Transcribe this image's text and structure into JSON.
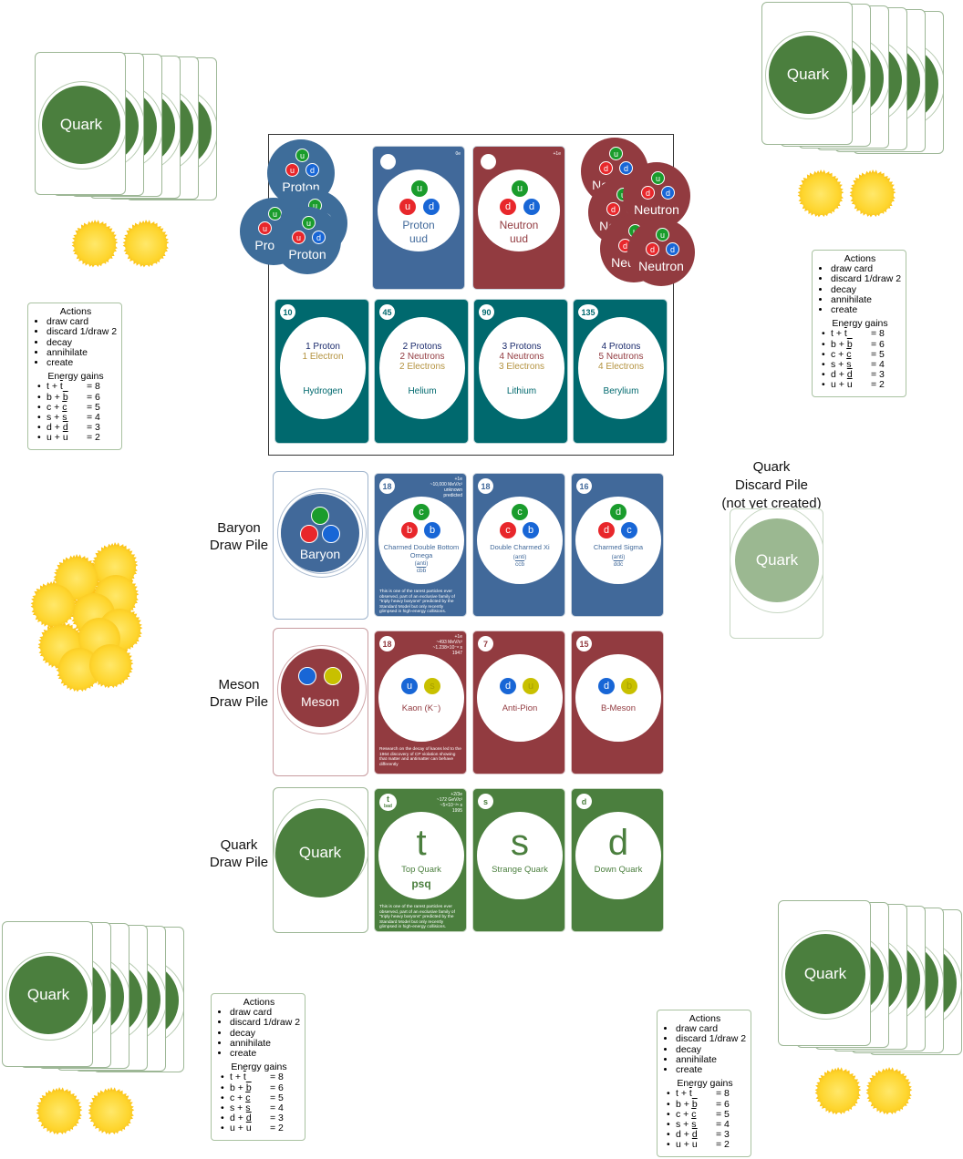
{
  "colors": {
    "quark_green": "#4b7f3e",
    "baryon_blue": "#41699a",
    "meson_red": "#923b40",
    "atom_teal": "#00696e",
    "sun": "#fcc51a"
  },
  "deck": {
    "quark_back": "Quark",
    "baryon_back": "Baryon",
    "meson_back": "Meson"
  },
  "labels": {
    "baryon_pile": "Baryon\nDraw Pile",
    "meson_pile": "Meson\nDraw Pile",
    "quark_pile": "Quark\nDraw Pile",
    "discard_pile": "Quark\nDiscard Pile\n(not yet created)"
  },
  "actions_panel": {
    "title": "Actions",
    "items": [
      "draw card",
      "discard 1/draw 2",
      "decay",
      "annihilate",
      "create"
    ],
    "energy_title": "Energy gains",
    "gains": [
      {
        "pair": "t + ",
        "bar": "t",
        "val": "= 8"
      },
      {
        "pair": "b + ",
        "bar": "b",
        "val": "= 6"
      },
      {
        "pair": "c + ",
        "bar": "c",
        "val": "= 5"
      },
      {
        "pair": "s + ",
        "bar": "s",
        "val": "= 4"
      },
      {
        "pair": "d + ",
        "bar": "d",
        "val": "= 3"
      },
      {
        "pair": "u + ",
        "bar": "u",
        "val": "= 2"
      }
    ]
  },
  "nucleon_cards": [
    {
      "name": "Proton",
      "quarks": "uud",
      "charge": "0e"
    },
    {
      "name": "Neutron",
      "quarks": "uud",
      "charge": "+1e"
    }
  ],
  "tokens": {
    "proton": "Proton",
    "neutron": "Neutron"
  },
  "atom_cards": [
    {
      "num": "10",
      "lines": [
        "1 Proton",
        "1 Electron"
      ],
      "name": "Hydrogen"
    },
    {
      "num": "45",
      "lines": [
        "2 Protons",
        "2 Neutrons",
        "2 Electrons"
      ],
      "name": "Helium"
    },
    {
      "num": "90",
      "lines": [
        "3 Protons",
        "4 Neutrons",
        "3 Electrons"
      ],
      "name": "Lithium"
    },
    {
      "num": "135",
      "lines": [
        "4 Protons",
        "5 Neutrons",
        "4 Electrons"
      ],
      "name": "Berylium"
    }
  ],
  "baryon_cards": [
    {
      "num": "18",
      "quarks": [
        "c",
        "b",
        "b"
      ],
      "name": "Charmed Double Bottom Omega",
      "anti": "(anti)",
      "anti_q": "cbb",
      "info": [
        "+1e",
        "~10,000 MeV/c²",
        "unknown",
        "predicted"
      ],
      "desc": "This is one of the rarest particles ever observed, part of an exclusive family of \"triply heavy baryons\" predicted by the Standard Model but only recently glimpsed in high-energy collisions."
    },
    {
      "num": "18",
      "quarks": [
        "c",
        "c",
        "b"
      ],
      "name": "Double Charmed Xi",
      "anti": "(anti)",
      "anti_q": "ccb"
    },
    {
      "num": "16",
      "quarks": [
        "d",
        "d",
        "c"
      ],
      "name": "Charmed Sigma",
      "anti": "(anti)",
      "anti_q": "ddc"
    }
  ],
  "meson_cards": [
    {
      "num": "18",
      "quarks": [
        "u",
        "s"
      ],
      "name": "Kaon (K⁻)",
      "info": [
        "+1e",
        "~493 MeV/c²",
        "~1.238×10⁻⁸ s",
        "1947"
      ],
      "desc": "Research on the decay of kaons led to the 1964 discovery of CP violation showing that matter and antimatter can behave differently"
    },
    {
      "num": "7",
      "quarks": [
        "d",
        "u"
      ],
      "name": "Anti-Pion"
    },
    {
      "num": "15",
      "quarks": [
        "d",
        "b"
      ],
      "name": "B-Meson"
    }
  ],
  "quark_cards": [
    {
      "corner": "t",
      "corner_sub": "bad",
      "big": "t",
      "name": "Top Quark",
      "extra": "psq",
      "info": [
        "+2/3e",
        "~172 GeV/c²",
        "~5×10⁻²⁵ s",
        "1995"
      ],
      "desc": "This is one of the rarest particles ever observed, part of an exclusive family of \"triply heavy baryons\" predicted by the Standard Model but only recently glimpsed in high-energy collisions."
    },
    {
      "corner": "s",
      "big": "s",
      "name": "Strange Quark"
    },
    {
      "corner": "d",
      "big": "d",
      "name": "Down Quark"
    }
  ]
}
